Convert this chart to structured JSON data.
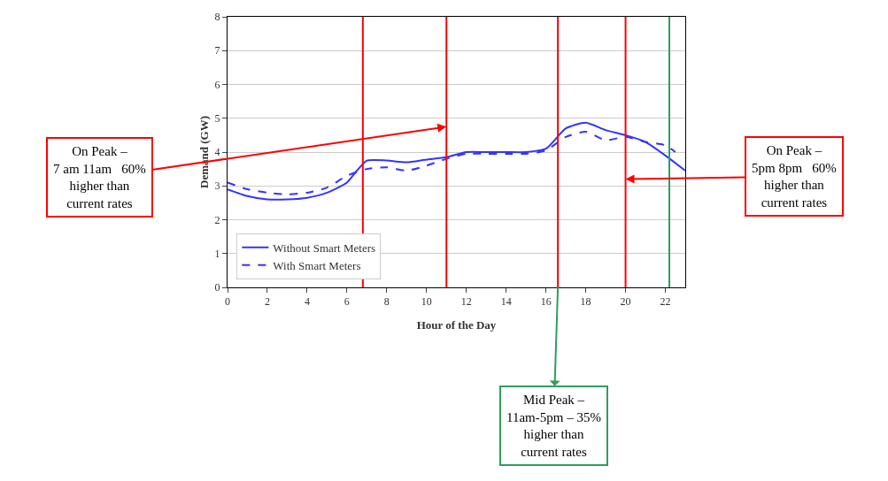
{
  "chart_data": {
    "type": "line",
    "xlabel": "Hour of the Day",
    "ylabel": "Demand (GW)",
    "xlim": [
      0,
      23
    ],
    "xticks": [
      0,
      2,
      4,
      6,
      8,
      10,
      12,
      14,
      16,
      18,
      20,
      22
    ],
    "ylim": [
      0,
      8
    ],
    "yticks": [
      0,
      1,
      2,
      3,
      4,
      5,
      6,
      7,
      8
    ],
    "grid": "y",
    "legend": "bottom left",
    "marker": "none",
    "series": [
      {
        "name": "Without Smart Meters",
        "color": "#3333ff",
        "line_style": "solid",
        "x": [
          0,
          1,
          2,
          3,
          4,
          5,
          6,
          6.5,
          7,
          8,
          9,
          10,
          11,
          12,
          13,
          14,
          15,
          16,
          17,
          18,
          19,
          20,
          21,
          22,
          23
        ],
        "values": [
          2.9,
          2.7,
          2.6,
          2.6,
          2.65,
          2.8,
          3.1,
          3.45,
          3.75,
          3.75,
          3.7,
          3.78,
          3.85,
          4.0,
          4.0,
          4.0,
          4.0,
          4.1,
          4.7,
          4.87,
          4.65,
          4.5,
          4.3,
          3.9,
          3.45
        ]
      },
      {
        "name": "With Smart Meters",
        "color": "#3333ff",
        "line_style": "dashed",
        "x": [
          0,
          1,
          2,
          3,
          4,
          5,
          6,
          7,
          8,
          9,
          10,
          11,
          12,
          13,
          14,
          15,
          16,
          17,
          18,
          19,
          20,
          21,
          22,
          22.5
        ],
        "values": [
          3.1,
          2.9,
          2.8,
          2.75,
          2.8,
          2.95,
          3.3,
          3.5,
          3.55,
          3.45,
          3.6,
          3.8,
          3.95,
          3.95,
          3.95,
          3.95,
          4.05,
          4.45,
          4.6,
          4.35,
          4.45,
          4.3,
          4.2,
          4.0
        ]
      }
    ],
    "ref_lines": [
      {
        "axis": "x",
        "value": 6.8,
        "color": "#ff0000"
      },
      {
        "axis": "x",
        "value": 11,
        "color": "#ff0000"
      },
      {
        "axis": "x",
        "value": 16.6,
        "color": "#ff0000"
      },
      {
        "axis": "x",
        "value": 20,
        "color": "#ff0000"
      },
      {
        "axis": "x",
        "value": 22.2,
        "color": "#2e9e5e"
      }
    ],
    "annotations": [
      {
        "text": "On Peak –\n7 am 11am   60%\nhigher than\ncurrent rates",
        "x": 11,
        "y": 4.75
      },
      {
        "text": "On Peak –\n5pm 8pm   60%\nhigher than\ncurrent rates",
        "x": 20,
        "y": 3.2
      },
      {
        "text": "Mid Peak –\n11am-5pm – 35%\nhigher than\ncurrent rates",
        "x": 16.6,
        "y": 0
      }
    ]
  }
}
